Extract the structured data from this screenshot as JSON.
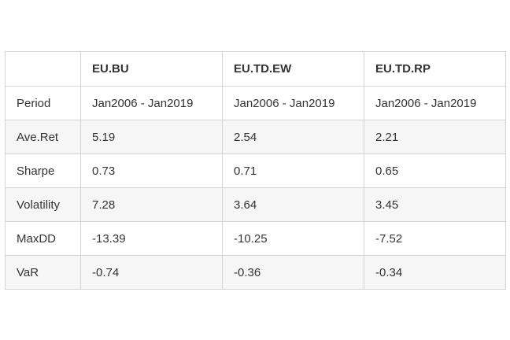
{
  "table": {
    "headers": [
      "",
      "EU.BU",
      "EU.TD.EW",
      "EU.TD.RP"
    ],
    "rows": [
      [
        "Period",
        "Jan2006 - Jan2019",
        "Jan2006 - Jan2019",
        "Jan2006 - Jan2019"
      ],
      [
        "Ave.Ret",
        "5.19",
        "2.54",
        "2.21"
      ],
      [
        "Sharpe",
        "0.73",
        "0.71",
        "0.65"
      ],
      [
        "Volatility",
        "7.28",
        "3.64",
        "3.45"
      ],
      [
        "MaxDD",
        "-13.39",
        "-10.25",
        "-7.52"
      ],
      [
        "VaR",
        "-0.74",
        "-0.36",
        "-0.34"
      ]
    ]
  }
}
